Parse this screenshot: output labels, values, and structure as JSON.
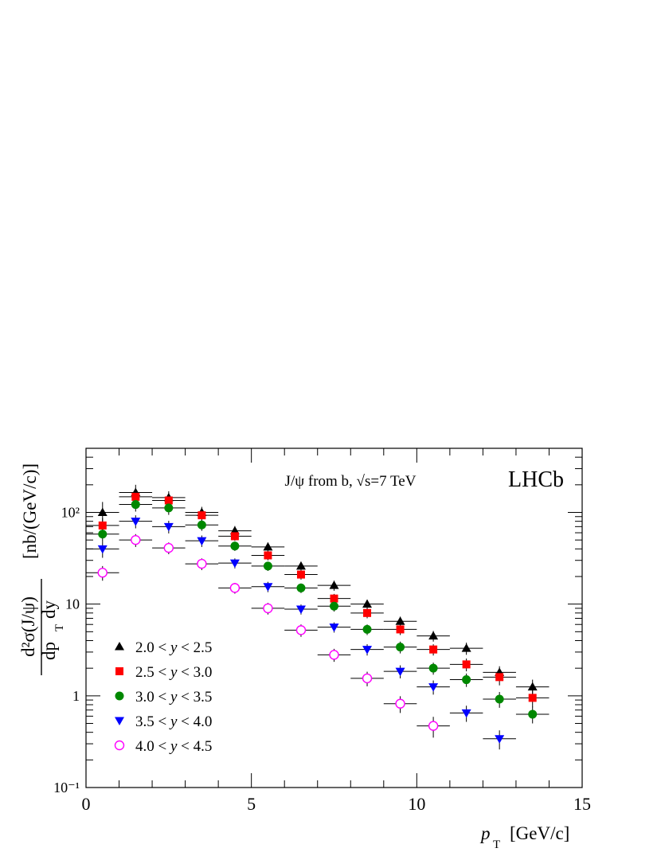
{
  "chart_data": {
    "type": "scatter",
    "x_label_text": "[GeV/c]",
    "x_label_symbol": "p",
    "x_label_sub": "T",
    "y_label_num": "d²σ(J/ψ)",
    "y_label_den": "dp",
    "y_label_den_sub": "T",
    "y_label_den_end": "dy",
    "y_label_unit": "[nb/(GeV/c)]",
    "annotation": "J/ψ from b, √s=7 TeV",
    "experiment": "LHCb",
    "xlim": [
      0,
      15
    ],
    "ylim": [
      0.1,
      500
    ],
    "log_y": true,
    "x_ticks": [
      "0",
      "5",
      "10",
      "15"
    ],
    "y_ticks": [
      {
        "value": 0.1,
        "label": "10⁻¹"
      },
      {
        "value": 1,
        "label": "1"
      },
      {
        "value": 10,
        "label": "10"
      },
      {
        "value": 100,
        "label": "10²"
      }
    ],
    "legend_position": "bottom-left",
    "series": [
      {
        "name": "2.0 < y < 2.5",
        "marker": "triangle-up",
        "color": "#000000",
        "filled": true,
        "points": [
          {
            "x": 0.5,
            "y": 100,
            "yerr": [
              25,
              30
            ]
          },
          {
            "x": 1.5,
            "y": 165,
            "yerr": [
              30,
              35
            ]
          },
          {
            "x": 2.5,
            "y": 145,
            "yerr": [
              25,
              25
            ]
          },
          {
            "x": 3.5,
            "y": 100,
            "yerr": [
              15,
              15
            ]
          },
          {
            "x": 4.5,
            "y": 63,
            "yerr": [
              8,
              8
            ]
          },
          {
            "x": 5.5,
            "y": 42,
            "yerr": [
              5,
              5
            ]
          },
          {
            "x": 6.5,
            "y": 26,
            "yerr": [
              3,
              3
            ]
          },
          {
            "x": 7.5,
            "y": 16,
            "yerr": [
              2,
              2
            ]
          },
          {
            "x": 8.5,
            "y": 10,
            "yerr": [
              1.2,
              1.2
            ]
          },
          {
            "x": 9.5,
            "y": 6.5,
            "yerr": [
              0.8,
              0.8
            ]
          },
          {
            "x": 10.5,
            "y": 4.5,
            "yerr": [
              0.6,
              0.6
            ]
          },
          {
            "x": 11.5,
            "y": 3.3,
            "yerr": [
              0.5,
              0.5
            ]
          },
          {
            "x": 12.5,
            "y": 1.8,
            "yerr": [
              0.3,
              0.3
            ]
          },
          {
            "x": 13.5,
            "y": 1.25,
            "yerr": [
              0.25,
              0.25
            ]
          }
        ]
      },
      {
        "name": "2.5 < y < 3.0",
        "marker": "square",
        "color": "#ff0000",
        "filled": true,
        "points": [
          {
            "x": 0.5,
            "y": 72,
            "yerr": [
              15,
              15
            ]
          },
          {
            "x": 1.5,
            "y": 148,
            "yerr": [
              25,
              25
            ]
          },
          {
            "x": 2.5,
            "y": 135,
            "yerr": [
              20,
              20
            ]
          },
          {
            "x": 3.5,
            "y": 93,
            "yerr": [
              12,
              12
            ]
          },
          {
            "x": 4.5,
            "y": 55,
            "yerr": [
              6,
              6
            ]
          },
          {
            "x": 5.5,
            "y": 34,
            "yerr": [
              4,
              4
            ]
          },
          {
            "x": 6.5,
            "y": 21,
            "yerr": [
              2.5,
              2.5
            ]
          },
          {
            "x": 7.5,
            "y": 11.5,
            "yerr": [
              1.4,
              1.4
            ]
          },
          {
            "x": 8.5,
            "y": 8,
            "yerr": [
              1,
              1
            ]
          },
          {
            "x": 9.5,
            "y": 5.3,
            "yerr": [
              0.7,
              0.7
            ]
          },
          {
            "x": 10.5,
            "y": 3.2,
            "yerr": [
              0.45,
              0.45
            ]
          },
          {
            "x": 11.5,
            "y": 2.2,
            "yerr": [
              0.35,
              0.35
            ]
          },
          {
            "x": 12.5,
            "y": 1.6,
            "yerr": [
              0.3,
              0.3
            ]
          },
          {
            "x": 13.5,
            "y": 0.95,
            "yerr": [
              0.2,
              0.2
            ]
          }
        ]
      },
      {
        "name": "3.0 < y < 3.5",
        "marker": "circle",
        "color": "#008800",
        "filled": true,
        "points": [
          {
            "x": 0.5,
            "y": 58,
            "yerr": [
              10,
              10
            ]
          },
          {
            "x": 1.5,
            "y": 122,
            "yerr": [
              20,
              20
            ]
          },
          {
            "x": 2.5,
            "y": 112,
            "yerr": [
              18,
              18
            ]
          },
          {
            "x": 3.5,
            "y": 73,
            "yerr": [
              10,
              10
            ]
          },
          {
            "x": 4.5,
            "y": 43,
            "yerr": [
              5,
              5
            ]
          },
          {
            "x": 5.5,
            "y": 26,
            "yerr": [
              3,
              3
            ]
          },
          {
            "x": 6.5,
            "y": 15,
            "yerr": [
              1.8,
              1.8
            ]
          },
          {
            "x": 7.5,
            "y": 9.5,
            "yerr": [
              1.2,
              1.2
            ]
          },
          {
            "x": 8.5,
            "y": 5.3,
            "yerr": [
              0.7,
              0.7
            ]
          },
          {
            "x": 9.5,
            "y": 3.4,
            "yerr": [
              0.5,
              0.5
            ]
          },
          {
            "x": 10.5,
            "y": 2.0,
            "yerr": [
              0.3,
              0.3
            ]
          },
          {
            "x": 11.5,
            "y": 1.5,
            "yerr": [
              0.25,
              0.25
            ]
          },
          {
            "x": 12.5,
            "y": 0.92,
            "yerr": [
              0.18,
              0.18
            ]
          },
          {
            "x": 13.5,
            "y": 0.63,
            "yerr": [
              0.13,
              0.13
            ]
          }
        ]
      },
      {
        "name": "3.5 < y < 4.0",
        "marker": "triangle-down",
        "color": "#0000ff",
        "filled": true,
        "points": [
          {
            "x": 0.5,
            "y": 40,
            "yerr": [
              8,
              8
            ]
          },
          {
            "x": 1.5,
            "y": 80,
            "yerr": [
              13,
              13
            ]
          },
          {
            "x": 2.5,
            "y": 70,
            "yerr": [
              11,
              11
            ]
          },
          {
            "x": 3.5,
            "y": 49,
            "yerr": [
              7,
              7
            ]
          },
          {
            "x": 4.5,
            "y": 28,
            "yerr": [
              3.5,
              3.5
            ]
          },
          {
            "x": 5.5,
            "y": 15.5,
            "yerr": [
              2,
              2
            ]
          },
          {
            "x": 6.5,
            "y": 8.8,
            "yerr": [
              1.1,
              1.1
            ]
          },
          {
            "x": 7.5,
            "y": 5.6,
            "yerr": [
              0.7,
              0.7
            ]
          },
          {
            "x": 8.5,
            "y": 3.2,
            "yerr": [
              0.45,
              0.45
            ]
          },
          {
            "x": 9.5,
            "y": 1.85,
            "yerr": [
              0.3,
              0.3
            ]
          },
          {
            "x": 10.5,
            "y": 1.25,
            "yerr": [
              0.22,
              0.22
            ]
          },
          {
            "x": 11.5,
            "y": 0.65,
            "yerr": [
              0.13,
              0.13
            ]
          },
          {
            "x": 12.5,
            "y": 0.34,
            "yerr": [
              0.08,
              0.08
            ]
          }
        ]
      },
      {
        "name": "4.0 < y < 4.5",
        "marker": "circle-open",
        "color": "#ff00ff",
        "filled": false,
        "points": [
          {
            "x": 0.5,
            "y": 22,
            "yerr": [
              4,
              4
            ]
          },
          {
            "x": 1.5,
            "y": 50,
            "yerr": [
              8,
              8
            ]
          },
          {
            "x": 2.5,
            "y": 41,
            "yerr": [
              6,
              6
            ]
          },
          {
            "x": 3.5,
            "y": 27.5,
            "yerr": [
              4,
              4
            ]
          },
          {
            "x": 4.5,
            "y": 15,
            "yerr": [
              2,
              2
            ]
          },
          {
            "x": 5.5,
            "y": 9.0,
            "yerr": [
              1.3,
              1.3
            ]
          },
          {
            "x": 6.5,
            "y": 5.2,
            "yerr": [
              0.8,
              0.8
            ]
          },
          {
            "x": 7.5,
            "y": 2.8,
            "yerr": [
              0.45,
              0.45
            ]
          },
          {
            "x": 8.5,
            "y": 1.55,
            "yerr": [
              0.28,
              0.28
            ]
          },
          {
            "x": 9.5,
            "y": 0.82,
            "yerr": [
              0.17,
              0.17
            ]
          },
          {
            "x": 10.5,
            "y": 0.47,
            "yerr": [
              0.12,
              0.12
            ]
          }
        ]
      }
    ]
  }
}
